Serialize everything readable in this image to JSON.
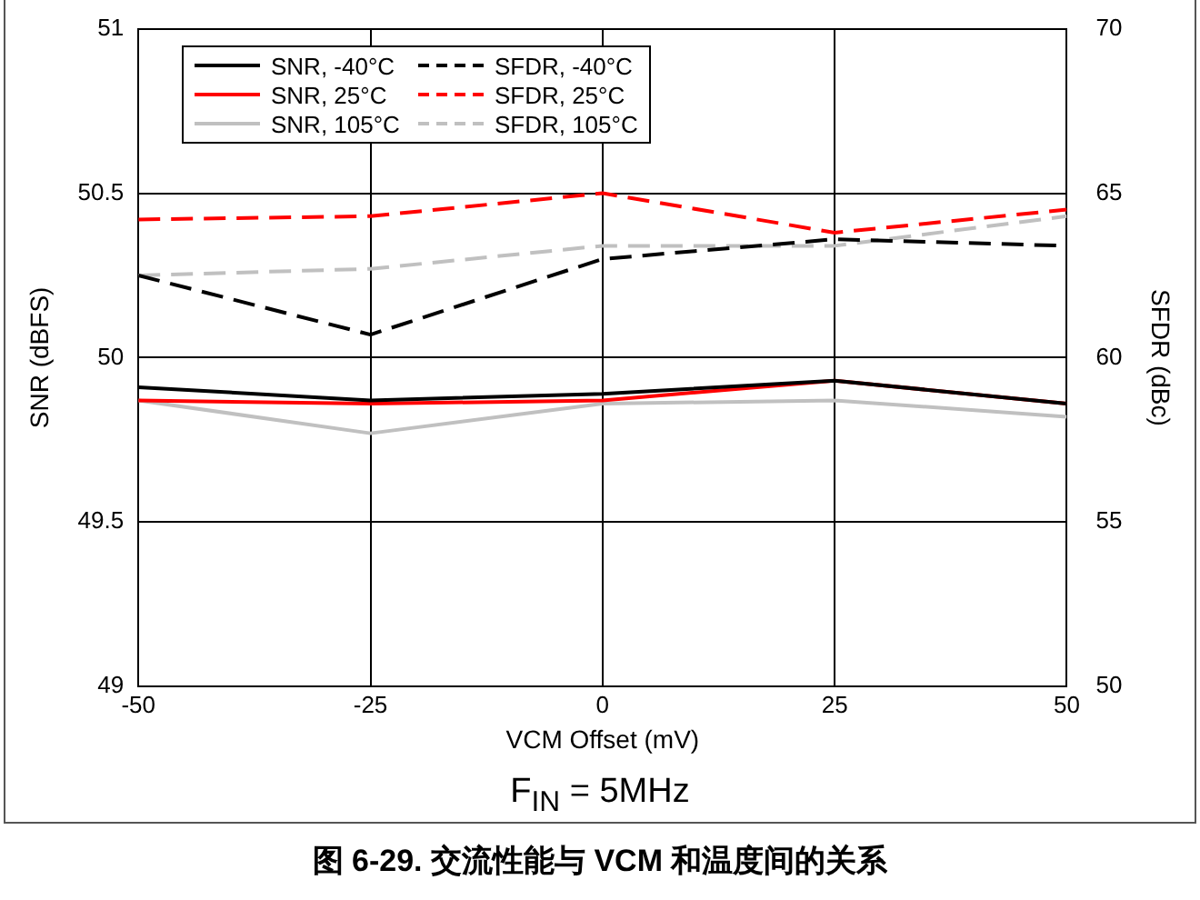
{
  "chart_data": {
    "type": "line",
    "title": "图 6-29. 交流性能与 VCM 和温度间的关系",
    "annotations": [
      "F$_{IN}$ = 5MHz"
    ],
    "xlabel": "VCM Offset (mV)",
    "ylabel": "SNR (dBFS)",
    "y2label": "SFDR (dBc)",
    "x": [
      -50,
      -25,
      0,
      25,
      50
    ],
    "xlim": [
      -50,
      50
    ],
    "xticks": [
      -50,
      -25,
      0,
      25,
      50
    ],
    "ylim": [
      49,
      51
    ],
    "yticks": [
      49,
      49.5,
      50,
      50.5,
      51
    ],
    "y2lim": [
      50,
      70
    ],
    "y2ticks": [
      50,
      55,
      60,
      65,
      70
    ],
    "grid": true,
    "legend": "top left",
    "marker": "none",
    "series": [
      {
        "name": "SNR, -40°C",
        "color": "#000000",
        "line_style": "solid",
        "values": [
          49.91,
          49.87,
          49.89,
          49.93,
          49.86
        ]
      },
      {
        "name": "SFDR, -40°C",
        "color": "#000000",
        "line_style": "dashed",
        "axis": "y2",
        "values": [
          62.5,
          60.7,
          63.0,
          63.6,
          63.4
        ]
      },
      {
        "name": "SNR, 25°C",
        "color": "#ff0000",
        "line_style": "solid",
        "values": [
          49.87,
          49.86,
          49.87,
          49.93,
          49.86
        ]
      },
      {
        "name": "SFDR, 25°C",
        "color": "#ff0000",
        "line_style": "dashed",
        "axis": "y2",
        "values": [
          64.2,
          64.3,
          65.0,
          63.8,
          64.5
        ]
      },
      {
        "name": "SNR, 105°C",
        "color": "#c0c0c0",
        "line_style": "solid",
        "values": [
          49.87,
          49.77,
          49.86,
          49.87,
          49.82
        ]
      },
      {
        "name": "SFDR, 105°C",
        "color": "#c0c0c0",
        "line_style": "dashed",
        "axis": "y2",
        "values": [
          62.5,
          62.7,
          63.4,
          63.4,
          64.3
        ]
      }
    ]
  }
}
